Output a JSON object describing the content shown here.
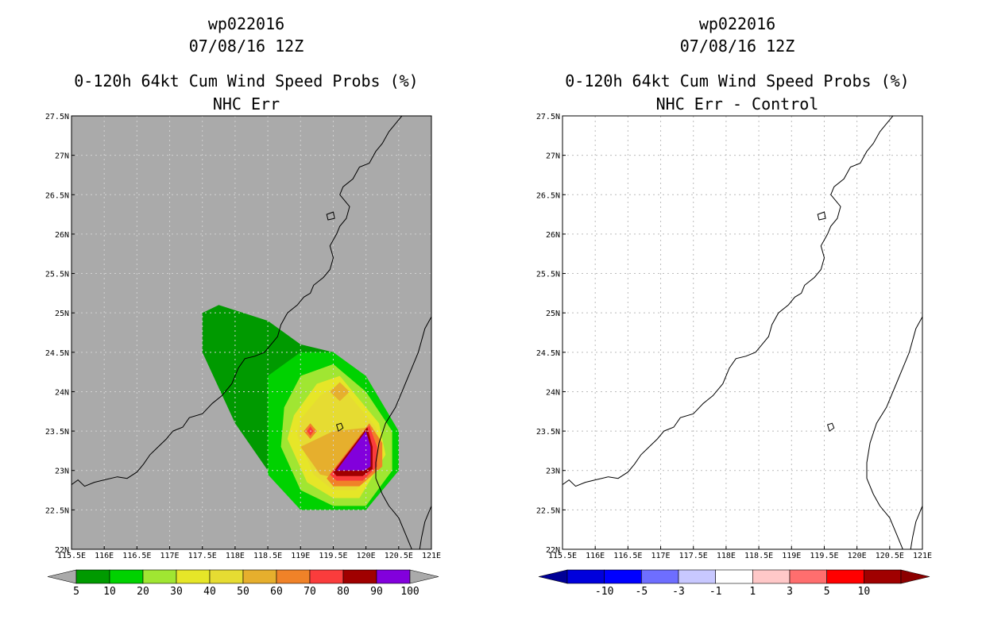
{
  "chart_data": [
    {
      "type": "heatmap",
      "title": [
        "wp022016",
        "07/08/16 12Z",
        "0-120h 64kt Cum Wind Speed Probs (%)",
        "NHC Err"
      ],
      "xlabel": "",
      "ylabel": "",
      "xlim": [
        115.5,
        121
      ],
      "ylim": [
        22,
        27.5
      ],
      "x_ticks": [
        "115.5E",
        "116E",
        "116.5E",
        "117E",
        "117.5E",
        "118E",
        "118.5E",
        "119E",
        "119.5E",
        "120E",
        "120.5E",
        "121E"
      ],
      "y_ticks": [
        "22N",
        "22.5N",
        "23N",
        "23.5N",
        "24N",
        "24.5N",
        "25N",
        "25.5N",
        "26N",
        "26.5N",
        "27N",
        "27.5N"
      ],
      "background": "#aaaaaa",
      "grid": true,
      "colorbar": {
        "labels": [
          "5",
          "10",
          "20",
          "30",
          "40",
          "50",
          "60",
          "70",
          "80",
          "90",
          "100"
        ],
        "colors": [
          "#009a00",
          "#00d200",
          "#a0e632",
          "#e6e628",
          "#e6dc32",
          "#e6af2d",
          "#f08228",
          "#fa3c3c",
          "#a00000",
          "#8200dc"
        ],
        "extend_color": "#aaaaaa"
      },
      "contours": [
        {
          "level": 5,
          "color": "#009a00",
          "points": [
            [
              117.5,
              25
            ],
            [
              117.75,
              25.1
            ],
            [
              118.5,
              24.9
            ],
            [
              119,
              24.6
            ],
            [
              119.5,
              24.5
            ],
            [
              120,
              24
            ],
            [
              120.5,
              23.5
            ],
            [
              120.5,
              23
            ],
            [
              120,
              22.5
            ],
            [
              119.5,
              22.5
            ],
            [
              119,
              22.5
            ],
            [
              118.5,
              23
            ],
            [
              118,
              23.6
            ],
            [
              117.5,
              24.5
            ]
          ]
        },
        {
          "level": 10,
          "color": "#00d200",
          "points": [
            [
              118.5,
              24.2
            ],
            [
              119,
              24.5
            ],
            [
              119.5,
              24.5
            ],
            [
              120,
              24.2
            ],
            [
              120.5,
              23.5
            ],
            [
              120.5,
              23
            ],
            [
              120,
              22.5
            ],
            [
              119.5,
              22.5
            ],
            [
              119,
              22.5
            ],
            [
              118.5,
              22.95
            ],
            [
              118.5,
              23.5
            ]
          ]
        },
        {
          "level": 20,
          "color": "#a0e632",
          "points": [
            [
              118.75,
              23.8
            ],
            [
              119,
              24.2
            ],
            [
              119.5,
              24.35
            ],
            [
              120,
              24
            ],
            [
              120.4,
              23.5
            ],
            [
              120.4,
              23
            ],
            [
              120,
              22.55
            ],
            [
              119.5,
              22.55
            ],
            [
              119,
              22.75
            ],
            [
              118.7,
              23.3
            ]
          ]
        },
        {
          "level": 30,
          "color": "#e6e628",
          "points": [
            [
              118.9,
              23.7
            ],
            [
              119.25,
              24.1
            ],
            [
              119.6,
              24.2
            ],
            [
              120.2,
              23.6
            ],
            [
              120.3,
              23.2
            ],
            [
              119.9,
              22.65
            ],
            [
              119.5,
              22.65
            ],
            [
              119.1,
              22.85
            ],
            [
              118.8,
              23.4
            ]
          ]
        },
        {
          "level": 40,
          "color": "#e6dc32",
          "points": [
            [
              119,
              23.65
            ],
            [
              119.3,
              23.95
            ],
            [
              119.6,
              24.1
            ],
            [
              120.15,
              23.55
            ],
            [
              120.25,
              23.25
            ],
            [
              119.85,
              22.75
            ],
            [
              119.5,
              22.75
            ],
            [
              119.2,
              22.95
            ],
            [
              118.95,
              23.45
            ]
          ]
        },
        {
          "level": 50,
          "color": "#e6af2d",
          "points": [
            [
              119,
              23.3
            ],
            [
              119.5,
              23.5
            ],
            [
              120.1,
              23.55
            ],
            [
              120.2,
              23.1
            ],
            [
              119.8,
              22.85
            ],
            [
              119.3,
              22.95
            ]
          ]
        },
        {
          "level": 50,
          "color": "#e6af2d",
          "points": [
            [
              119.45,
              24
            ],
            [
              119.6,
              24.12
            ],
            [
              119.75,
              24
            ],
            [
              119.6,
              23.88
            ]
          ]
        },
        {
          "level": 60,
          "color": "#f08228",
          "points": [
            [
              119.4,
              22.9
            ],
            [
              120.05,
              23.6
            ],
            [
              120.25,
              23.35
            ],
            [
              120.25,
              23.05
            ],
            [
              119.9,
              22.8
            ],
            [
              119.5,
              22.8
            ]
          ]
        },
        {
          "level": 60,
          "color": "#f08228",
          "points": [
            [
              119.05,
              23.5
            ],
            [
              119.15,
              23.6
            ],
            [
              119.25,
              23.5
            ],
            [
              119.15,
              23.4
            ]
          ]
        },
        {
          "level": 70,
          "color": "#fa3c3c",
          "points": [
            [
              119.45,
              22.95
            ],
            [
              120.05,
              23.57
            ],
            [
              120.17,
              23.3
            ],
            [
              120.17,
              23.05
            ],
            [
              119.95,
              22.87
            ],
            [
              119.55,
              22.87
            ]
          ]
        },
        {
          "level": 70,
          "color": "#fa3c3c",
          "points": [
            [
              119.1,
              23.5
            ],
            [
              119.15,
              23.56
            ],
            [
              119.2,
              23.5
            ],
            [
              119.15,
              23.44
            ]
          ]
        },
        {
          "level": 80,
          "color": "#a00000",
          "points": [
            [
              119.5,
              22.98
            ],
            [
              120.02,
              23.55
            ],
            [
              120.1,
              23.3
            ],
            [
              120.1,
              23.02
            ],
            [
              119.95,
              22.93
            ],
            [
              119.55,
              22.93
            ]
          ]
        },
        {
          "level": 90,
          "color": "#8200dc",
          "points": [
            [
              119.55,
              23
            ],
            [
              120,
              23.5
            ],
            [
              120.07,
              23.3
            ],
            [
              120.07,
              23.05
            ],
            [
              119.98,
              23
            ]
          ]
        }
      ]
    },
    {
      "type": "heatmap",
      "title": [
        "wp022016",
        "07/08/16 12Z",
        "0-120h 64kt Cum Wind Speed Probs (%)",
        "NHC Err - Control"
      ],
      "xlabel": "",
      "ylabel": "",
      "xlim": [
        115.5,
        121
      ],
      "ylim": [
        22,
        27.5
      ],
      "x_ticks": [
        "115.5E",
        "116E",
        "116.5E",
        "117E",
        "117.5E",
        "118E",
        "118.5E",
        "119E",
        "119.5E",
        "120E",
        "120.5E",
        "121E"
      ],
      "y_ticks": [
        "22N",
        "22.5N",
        "23N",
        "23.5N",
        "24N",
        "24.5N",
        "25N",
        "25.5N",
        "26N",
        "26.5N",
        "27N",
        "27.5N"
      ],
      "background": "#ffffff",
      "grid": true,
      "colorbar": {
        "labels": [
          "-10",
          "-5",
          "-3",
          "-1",
          "1",
          "3",
          "5",
          "10"
        ],
        "colors": [
          "#0000dc",
          "#0000ff",
          "#6e6eff",
          "#c8c8ff",
          "#ffffff",
          "#ffc8c8",
          "#ff6e6e",
          "#ff0000",
          "#a00000"
        ],
        "extend_low_color": "#000096",
        "extend_high_color": "#8c0000"
      },
      "contours": []
    }
  ],
  "coastline": {
    "china": [
      [
        115.5,
        22.82
      ],
      [
        115.6,
        22.88
      ],
      [
        115.7,
        22.8
      ],
      [
        115.85,
        22.85
      ],
      [
        116,
        22.88
      ],
      [
        116.2,
        22.92
      ],
      [
        116.35,
        22.9
      ],
      [
        116.5,
        22.98
      ],
      [
        116.6,
        23.08
      ],
      [
        116.7,
        23.2
      ],
      [
        116.8,
        23.28
      ],
      [
        116.95,
        23.4
      ],
      [
        117.05,
        23.5
      ],
      [
        117.2,
        23.55
      ],
      [
        117.3,
        23.67
      ],
      [
        117.5,
        23.72
      ],
      [
        117.65,
        23.85
      ],
      [
        117.8,
        23.95
      ],
      [
        117.95,
        24.1
      ],
      [
        118.05,
        24.3
      ],
      [
        118.15,
        24.42
      ],
      [
        118.3,
        24.45
      ],
      [
        118.45,
        24.5
      ],
      [
        118.55,
        24.6
      ],
      [
        118.65,
        24.7
      ],
      [
        118.7,
        24.85
      ],
      [
        118.8,
        25.0
      ],
      [
        118.95,
        25.1
      ],
      [
        119.05,
        25.2
      ],
      [
        119.15,
        25.25
      ],
      [
        119.2,
        25.35
      ],
      [
        119.35,
        25.45
      ],
      [
        119.45,
        25.55
      ],
      [
        119.5,
        25.7
      ],
      [
        119.45,
        25.85
      ],
      [
        119.55,
        26.0
      ],
      [
        119.6,
        26.1
      ],
      [
        119.7,
        26.2
      ],
      [
        119.75,
        26.35
      ],
      [
        119.6,
        26.5
      ],
      [
        119.65,
        26.6
      ],
      [
        119.8,
        26.7
      ],
      [
        119.9,
        26.85
      ],
      [
        120.05,
        26.9
      ],
      [
        120.15,
        27.05
      ],
      [
        120.25,
        27.15
      ],
      [
        120.35,
        27.3
      ],
      [
        120.45,
        27.4
      ],
      [
        120.55,
        27.5
      ]
    ],
    "taiwan": [
      [
        121,
        24.95
      ],
      [
        120.9,
        24.8
      ],
      [
        120.8,
        24.5
      ],
      [
        120.7,
        24.3
      ],
      [
        120.6,
        24.1
      ],
      [
        120.45,
        23.8
      ],
      [
        120.3,
        23.6
      ],
      [
        120.2,
        23.35
      ],
      [
        120.15,
        23.1
      ],
      [
        120.15,
        22.9
      ],
      [
        120.25,
        22.7
      ],
      [
        120.35,
        22.55
      ],
      [
        120.5,
        22.4
      ],
      [
        120.6,
        22.2
      ],
      [
        120.7,
        22
      ]
    ],
    "taiwan_south": [
      [
        121,
        22.55
      ],
      [
        120.9,
        22.35
      ],
      [
        120.85,
        22.15
      ],
      [
        120.82,
        22
      ]
    ],
    "islands": [
      [
        [
          119.4,
          26.25
        ],
        [
          119.5,
          26.28
        ],
        [
          119.52,
          26.2
        ],
        [
          119.42,
          26.18
        ]
      ],
      [
        [
          119.55,
          23.58
        ],
        [
          119.62,
          23.6
        ],
        [
          119.65,
          23.54
        ],
        [
          119.58,
          23.5
        ]
      ]
    ]
  }
}
